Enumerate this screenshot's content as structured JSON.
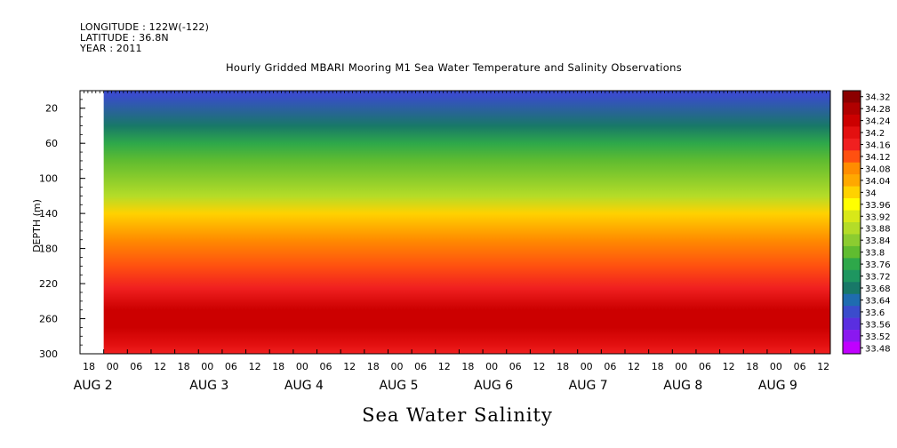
{
  "header": {
    "longitude": "LONGITUDE : 122W(-122)",
    "latitude": "LATITUDE : 36.8N",
    "year": "YEAR : 2011"
  },
  "chart_data": {
    "type": "heatmap",
    "title": "Hourly Gridded MBARI Mooring M1 Sea Water Temperature and Salinity Observations",
    "main_label": "Sea Water Salinity",
    "ylabel": "DEPTH (m)",
    "xlabel": "",
    "ylim": [
      300,
      0
    ],
    "y_ticks": [
      20,
      60,
      100,
      140,
      180,
      220,
      260,
      300
    ],
    "x_hour_ticks": [
      "18",
      "00",
      "06",
      "12",
      "18",
      "00",
      "06",
      "12",
      "18",
      "00",
      "06",
      "12",
      "18",
      "00",
      "06",
      "12",
      "18",
      "00",
      "06",
      "12",
      "18",
      "00",
      "06",
      "12",
      "18",
      "00",
      "06",
      "12",
      "18",
      "00",
      "06",
      "12"
    ],
    "x_day_labels": [
      "AUG 2",
      "AUG 3",
      "AUG 4",
      "AUG 5",
      "AUG 6",
      "AUG 7",
      "AUG 8",
      "AUG 9"
    ],
    "data_start": "AUG 2 00",
    "data_end": "AUG 9 16",
    "colorbar": {
      "labels": [
        "34.32",
        "34.28",
        "34.24",
        "34.2",
        "34.16",
        "34.12",
        "34.08",
        "34.04",
        "34",
        "33.96",
        "33.92",
        "33.88",
        "33.84",
        "33.8",
        "33.76",
        "33.72",
        "33.68",
        "33.64",
        "33.6",
        "33.56",
        "33.52",
        "33.48"
      ],
      "colors": [
        "#8b0000",
        "#b00000",
        "#cc0000",
        "#e31010",
        "#f02020",
        "#ff5010",
        "#ff8c00",
        "#ffa800",
        "#ffd200",
        "#ffff00",
        "#d8e818",
        "#b4dc28",
        "#8ccc30",
        "#60bc30",
        "#2ea84a",
        "#1e9660",
        "#187868",
        "#1f6cb0",
        "#3a4ccc",
        "#5a2ee0",
        "#8a18f0",
        "#c000ff"
      ]
    },
    "profile": [
      {
        "depth": 5,
        "salinity": 33.62
      },
      {
        "depth": 40,
        "salinity": 33.68
      },
      {
        "depth": 60,
        "salinity": 33.75
      },
      {
        "depth": 80,
        "salinity": 33.82
      },
      {
        "depth": 120,
        "salinity": 33.9
      },
      {
        "depth": 140,
        "salinity": 34.0
      },
      {
        "depth": 170,
        "salinity": 34.06
      },
      {
        "depth": 200,
        "salinity": 34.1
      },
      {
        "depth": 225,
        "salinity": 34.16
      },
      {
        "depth": 250,
        "salinity": 34.22
      },
      {
        "depth": 270,
        "salinity": 34.24
      },
      {
        "depth": 290,
        "salinity": 34.18
      },
      {
        "depth": 300,
        "salinity": 34.15
      }
    ]
  }
}
